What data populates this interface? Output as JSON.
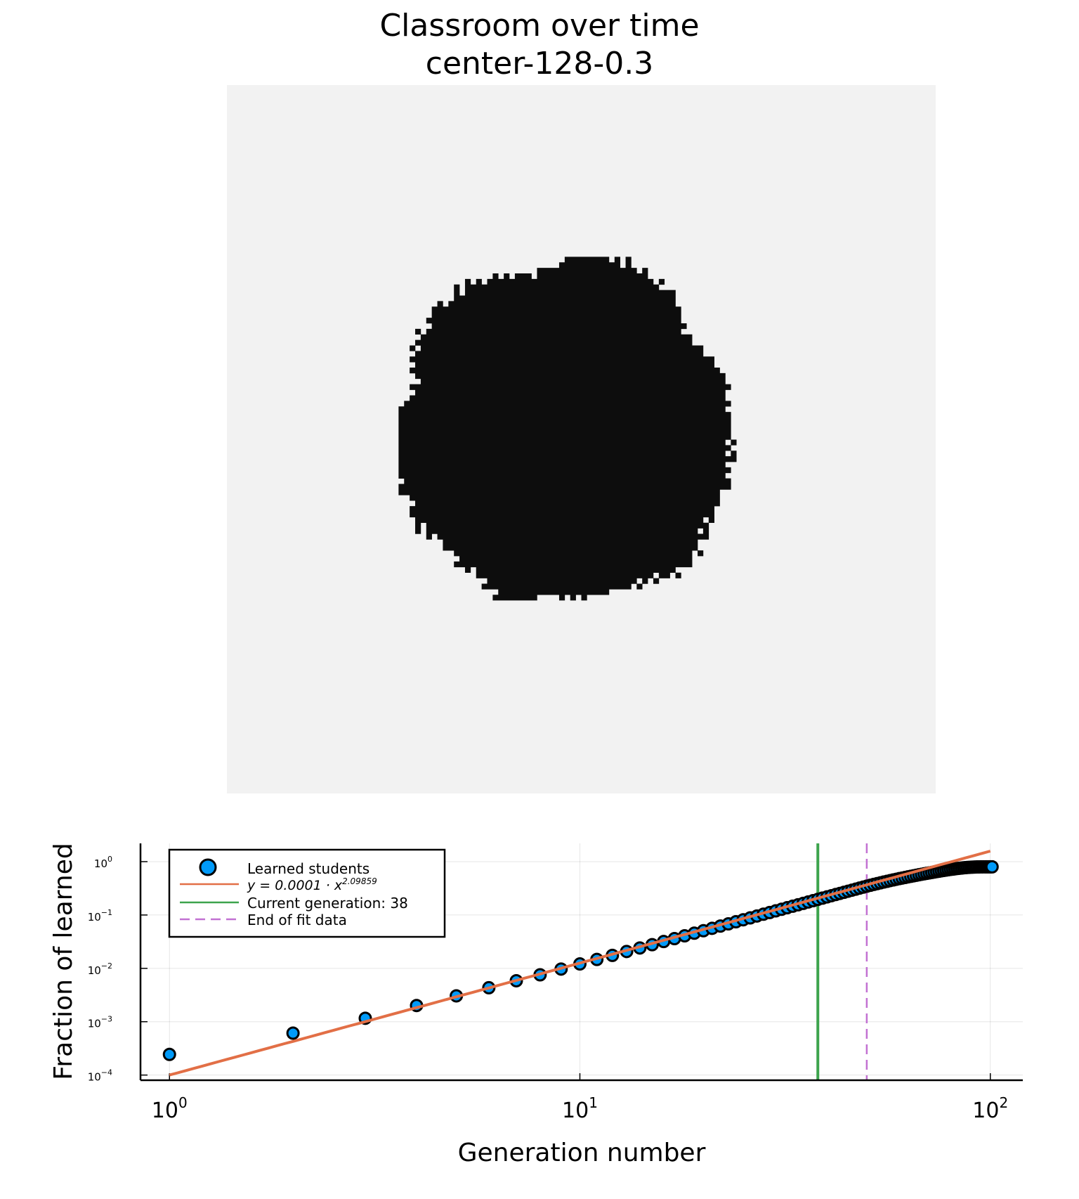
{
  "chart_data": [
    {
      "type": "heatmap",
      "title": "Classroom over time",
      "subtitle": "center-128-0.3",
      "grid_size": 128,
      "colors": {
        "learned": "#0d0d0d",
        "not_learned": "#f2f2f2"
      },
      "blob": {
        "center_col": 61,
        "center_row": 62.5,
        "radius_cells": 31,
        "roughness": 0.14,
        "seed": 38,
        "col_range": [
          31,
          98
        ],
        "row_range": [
          31,
          98
        ]
      }
    },
    {
      "type": "scatter",
      "xlabel": "Generation number",
      "ylabel": "Fraction of learned",
      "xscale": "log",
      "yscale": "log",
      "xlim": [
        0.85,
        120
      ],
      "ylim": [
        8e-05,
        2.2
      ],
      "grid": true,
      "legend_position": "top-left",
      "x_ticks": [
        {
          "base": "10",
          "exp": "0",
          "value": 1
        },
        {
          "base": "10",
          "exp": "1",
          "value": 10
        },
        {
          "base": "10",
          "exp": "2",
          "value": 100
        }
      ],
      "y_ticks": [
        {
          "base": "10",
          "exp": "0",
          "value": 1
        },
        {
          "base": "10",
          "exp": "−1",
          "value": 0.1
        },
        {
          "base": "10",
          "exp": "−2",
          "value": 0.01
        },
        {
          "base": "10",
          "exp": "−3",
          "value": 0.001
        },
        {
          "base": "10",
          "exp": "−4",
          "value": 0.0001
        }
      ],
      "series": [
        {
          "name": "Learned students",
          "kind": "scatter",
          "color": "#009af9",
          "x": [
            1,
            2,
            3,
            4,
            5,
            6,
            7,
            8,
            9,
            10,
            11,
            12,
            13,
            14,
            15,
            16,
            17,
            18,
            19,
            20,
            21,
            22,
            23,
            24,
            25,
            26,
            27,
            28,
            29,
            30,
            31,
            32,
            33,
            34,
            35,
            36,
            37,
            38,
            39,
            40,
            41,
            42,
            43,
            44,
            45,
            46,
            47,
            48,
            49,
            50,
            51,
            52,
            53,
            54,
            55,
            56,
            57,
            58,
            59,
            60,
            61,
            62,
            63,
            64,
            65,
            66,
            67,
            68,
            69,
            70,
            71,
            72,
            73,
            74,
            75,
            76,
            77,
            78,
            79,
            80,
            81,
            82,
            83,
            84,
            85,
            86,
            87,
            88,
            89,
            90,
            91,
            92,
            93,
            94,
            95,
            96,
            97,
            98,
            99,
            100,
            101
          ],
          "y": [
            0.000244,
            0.00061,
            0.00116,
            0.00201,
            0.00305,
            0.00433,
            0.00586,
            0.00757,
            0.0097,
            0.0121,
            0.0147,
            0.0175,
            0.0207,
            0.0241,
            0.0278,
            0.0318,
            0.0361,
            0.0407,
            0.0456,
            0.0508,
            0.0563,
            0.0621,
            0.0683,
            0.0747,
            0.0814,
            0.0884,
            0.0958,
            0.1034,
            0.1113,
            0.1196,
            0.1281,
            0.1369,
            0.1461,
            0.1555,
            0.1652,
            0.1753,
            0.1856,
            0.1962,
            0.2072,
            0.2184,
            0.2299,
            0.2418,
            0.2539,
            0.2663,
            0.279,
            0.292,
            0.3053,
            0.3189,
            0.3327,
            0.3469,
            0.3606,
            0.3742,
            0.3878,
            0.4012,
            0.4146,
            0.4279,
            0.4411,
            0.4542,
            0.4672,
            0.4801,
            0.4929,
            0.5056,
            0.5182,
            0.5307,
            0.5431,
            0.5554,
            0.5676,
            0.5797,
            0.5917,
            0.6036,
            0.6154,
            0.6271,
            0.6387,
            0.6502,
            0.6616,
            0.6728,
            0.6838,
            0.6945,
            0.7049,
            0.715,
            0.7247,
            0.7339,
            0.7427,
            0.7509,
            0.7585,
            0.7655,
            0.7718,
            0.7774,
            0.7823,
            0.7865,
            0.79,
            0.7929,
            0.7952,
            0.7969,
            0.7982,
            0.7991,
            0.7996,
            0.7999,
            0.8,
            0.8,
            0.8
          ]
        },
        {
          "name": "$y = 0.0001 \\cdot x^{2.09859}$",
          "legend_label": "y = 0.0001 · x",
          "legend_exp": "2.09859",
          "kind": "line",
          "color": "#e26f46",
          "coefficient": 0.0001,
          "exponent": 2.09859
        },
        {
          "name": "Current generation: 38",
          "kind": "vline",
          "color": "#3da44d",
          "x": 38
        },
        {
          "name": "End of fit data",
          "kind": "vline",
          "style": "dashed",
          "color": "#c271d2",
          "x": 50
        }
      ]
    }
  ]
}
